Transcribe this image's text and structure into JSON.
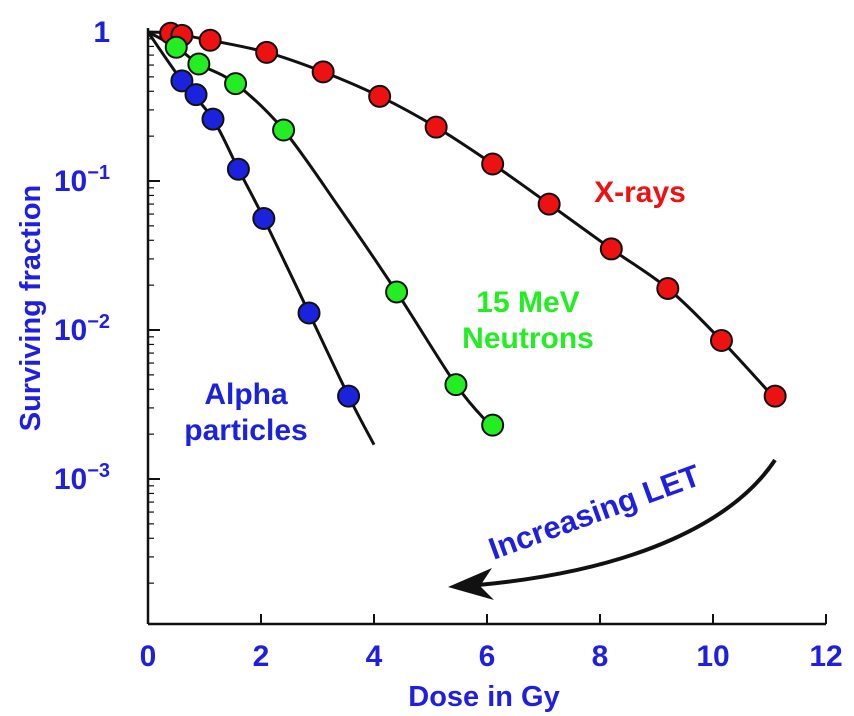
{
  "chart_data": {
    "type": "scatter",
    "xlabel": "Dose in Gy",
    "ylabel": "Surviving fraction",
    "xlim": [
      0,
      12
    ],
    "ylim": [
      0.0002,
      1
    ],
    "y_scale": "log",
    "grid": false,
    "x_ticks": [
      "0",
      "2",
      "4",
      "6",
      "8",
      "10",
      "12"
    ],
    "y_ticks": [
      {
        "value": 1,
        "label": "1",
        "sup": ""
      },
      {
        "value": 0.1,
        "label": "10",
        "sup": "−1"
      },
      {
        "value": 0.01,
        "label": "10",
        "sup": "−2"
      },
      {
        "value": 0.001,
        "label": "10",
        "sup": "−3"
      }
    ],
    "colors": {
      "axis_text": "#1f1fe0",
      "xrays": "#ee1111",
      "neutrons": "#22ee22",
      "alpha": "#1a22dd",
      "line": "#111111"
    },
    "series": [
      {
        "name": "X-rays",
        "label_lines": [
          "X-rays"
        ],
        "color_key": "xrays",
        "points": [
          [
            0.4,
            0.98
          ],
          [
            0.6,
            0.95
          ],
          [
            1.1,
            0.88
          ],
          [
            2.1,
            0.73
          ],
          [
            3.1,
            0.54
          ],
          [
            4.1,
            0.37
          ],
          [
            5.1,
            0.23
          ],
          [
            6.1,
            0.13
          ],
          [
            7.1,
            0.07
          ],
          [
            8.2,
            0.035
          ],
          [
            9.2,
            0.019
          ],
          [
            10.15,
            0.0085
          ],
          [
            11.1,
            0.0036
          ]
        ],
        "curve": [
          [
            0,
            1
          ],
          [
            0.4,
            0.98
          ],
          [
            1.1,
            0.88
          ],
          [
            2.1,
            0.73
          ],
          [
            3.1,
            0.54
          ],
          [
            4.1,
            0.37
          ],
          [
            5.1,
            0.23
          ],
          [
            6.1,
            0.13
          ],
          [
            7.1,
            0.07
          ],
          [
            8.2,
            0.035
          ],
          [
            9.2,
            0.019
          ],
          [
            10.15,
            0.0085
          ],
          [
            11.0,
            0.0038
          ]
        ]
      },
      {
        "name": "15 MeV Neutrons",
        "label_lines": [
          "15 MeV",
          "Neutrons"
        ],
        "color_key": "neutrons",
        "points": [
          [
            0.5,
            0.79
          ],
          [
            0.9,
            0.61
          ],
          [
            1.55,
            0.45
          ],
          [
            2.4,
            0.22
          ],
          [
            4.4,
            0.018
          ],
          [
            5.45,
            0.0043
          ],
          [
            6.1,
            0.0023
          ]
        ],
        "curve": [
          [
            0,
            1
          ],
          [
            0.5,
            0.79
          ],
          [
            0.9,
            0.61
          ],
          [
            1.55,
            0.45
          ],
          [
            2.4,
            0.22
          ],
          [
            3.4,
            0.065
          ],
          [
            4.4,
            0.018
          ],
          [
            5.45,
            0.0043
          ],
          [
            6.05,
            0.0023
          ]
        ]
      },
      {
        "name": "Alpha particles",
        "label_lines": [
          "Alpha",
          "particles"
        ],
        "color_key": "alpha",
        "points": [
          [
            0.6,
            0.47
          ],
          [
            0.85,
            0.38
          ],
          [
            1.15,
            0.26
          ],
          [
            1.6,
            0.12
          ],
          [
            2.05,
            0.056
          ],
          [
            2.85,
            0.013
          ],
          [
            3.55,
            0.0036
          ]
        ],
        "curve": [
          [
            0,
            1
          ],
          [
            0.6,
            0.47
          ],
          [
            1.15,
            0.26
          ],
          [
            1.6,
            0.12
          ],
          [
            2.05,
            0.056
          ],
          [
            2.85,
            0.013
          ],
          [
            3.55,
            0.0036
          ],
          [
            4.0,
            0.0017
          ]
        ]
      }
    ],
    "annotations": [
      {
        "text": "Increasing LET"
      }
    ]
  }
}
